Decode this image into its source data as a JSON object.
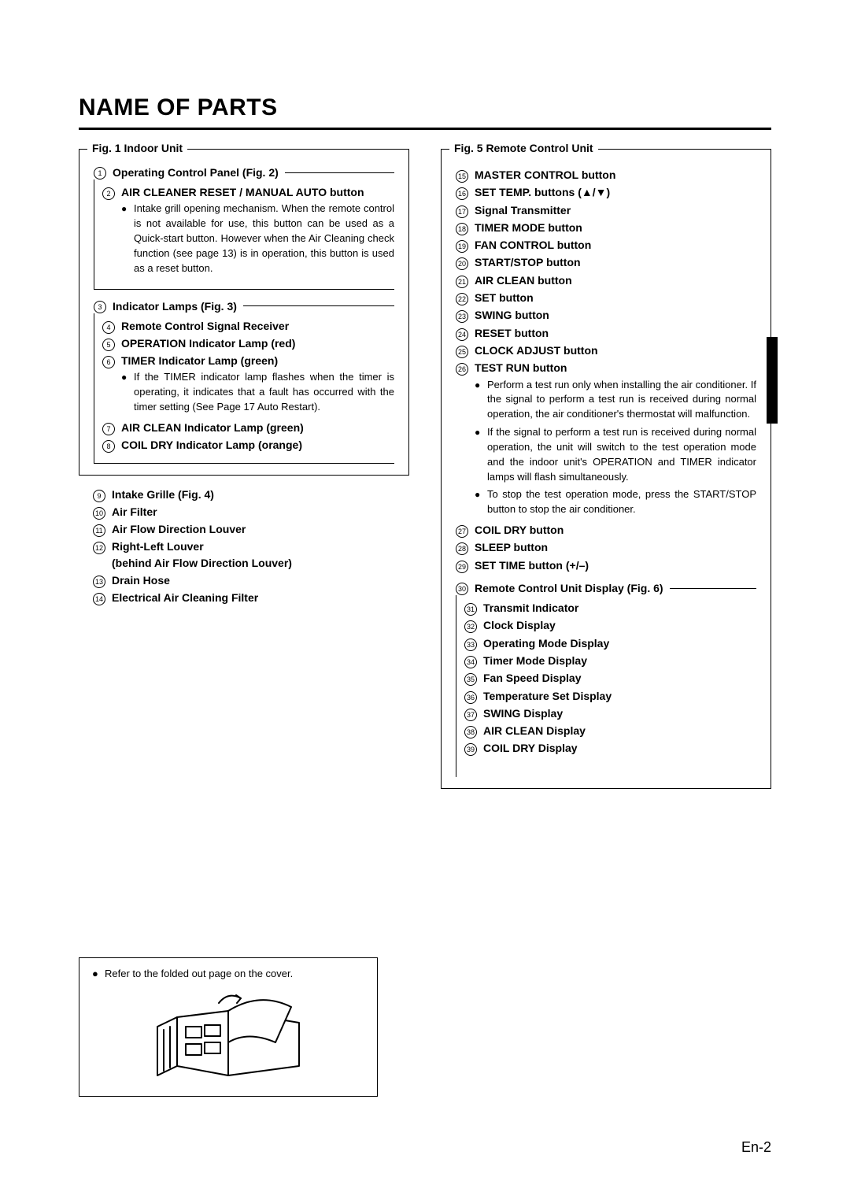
{
  "title": "NAME OF PARTS",
  "pageNumber": "En-2",
  "footerNote": "Refer to the folded out page on the cover.",
  "left": {
    "figLabel": "Fig. 1 Indoor Unit",
    "group1Heading": {
      "num": "1",
      "text": "Operating Control Panel (Fig. 2)"
    },
    "items1": [
      {
        "num": "2",
        "label": "AIR CLEANER RESET / MANUAL AUTO button",
        "bullets": [
          "Intake grill opening mechanism. When the remote control is not available for use, this button can be used as a Quick-start button. However when the Air Cleaning check function (see page 13) is in operation, this button is used as a reset button."
        ]
      }
    ],
    "group2Heading": {
      "num": "3",
      "text": "Indicator Lamps (Fig. 3)"
    },
    "items2": [
      {
        "num": "4",
        "label": "Remote Control Signal Receiver"
      },
      {
        "num": "5",
        "label": "OPERATION Indicator Lamp (red)"
      },
      {
        "num": "6",
        "label": "TIMER Indicator Lamp (green)",
        "bullets": [
          "If the TIMER indicator lamp flashes when the timer is operating, it indicates that a fault has occurred with the timer setting (See Page 17 Auto Restart)."
        ]
      },
      {
        "num": "7",
        "label": "AIR CLEAN Indicator Lamp (green)"
      },
      {
        "num": "8",
        "label": "COIL DRY Indicator Lamp (orange)"
      }
    ],
    "tailItems": [
      {
        "num": "9",
        "label": "Intake Grille (Fig. 4)"
      },
      {
        "num": "10",
        "label": "Air Filter"
      },
      {
        "num": "11",
        "label": "Air Flow Direction Louver"
      },
      {
        "num": "12",
        "label": "Right-Left Louver",
        "sub": "(behind Air Flow Direction Louver)"
      },
      {
        "num": "13",
        "label": "Drain Hose"
      },
      {
        "num": "14",
        "label": "Electrical Air Cleaning Filter"
      }
    ]
  },
  "right": {
    "figLabel": "Fig. 5 Remote Control Unit",
    "items": [
      {
        "num": "15",
        "label": "MASTER CONTROL button"
      },
      {
        "num": "16",
        "label": "SET TEMP. buttons (▲/▼)"
      },
      {
        "num": "17",
        "label": "Signal Transmitter"
      },
      {
        "num": "18",
        "label": "TIMER MODE button"
      },
      {
        "num": "19",
        "label": "FAN CONTROL button"
      },
      {
        "num": "20",
        "label": "START/STOP button"
      },
      {
        "num": "21",
        "label": "AIR CLEAN button"
      },
      {
        "num": "22",
        "label": "SET button"
      },
      {
        "num": "23",
        "label": "SWING button"
      },
      {
        "num": "24",
        "label": "RESET button"
      },
      {
        "num": "25",
        "label": "CLOCK ADJUST button"
      },
      {
        "num": "26",
        "label": "TEST RUN button",
        "bullets": [
          "Perform a test run only when installing the air conditioner. If the signal to perform a test run is received during normal operation, the air conditioner's thermostat will malfunction.",
          "If the signal to perform a test run is received during normal operation, the unit will switch to the test operation mode and the indoor unit's OPERATION and TIMER indicator lamps will flash simultaneously.",
          "To stop the test operation mode, press the START/STOP button to stop the air conditioner."
        ]
      },
      {
        "num": "27",
        "label": "COIL DRY button"
      },
      {
        "num": "28",
        "label": "SLEEP button"
      },
      {
        "num": "29",
        "label": "SET TIME button (+/–)"
      }
    ],
    "group2Heading": {
      "num": "30",
      "text": "Remote Control Unit Display (Fig. 6)"
    },
    "items2": [
      {
        "num": "31",
        "label": "Transmit Indicator"
      },
      {
        "num": "32",
        "label": "Clock Display"
      },
      {
        "num": "33",
        "label": "Operating Mode Display"
      },
      {
        "num": "34",
        "label": "Timer Mode Display"
      },
      {
        "num": "35",
        "label": "Fan Speed Display"
      },
      {
        "num": "36",
        "label": "Temperature Set Display"
      },
      {
        "num": "37",
        "label": "SWING Display"
      },
      {
        "num": "38",
        "label": "AIR CLEAN Display"
      },
      {
        "num": "39",
        "label": "COIL DRY Display"
      }
    ]
  }
}
